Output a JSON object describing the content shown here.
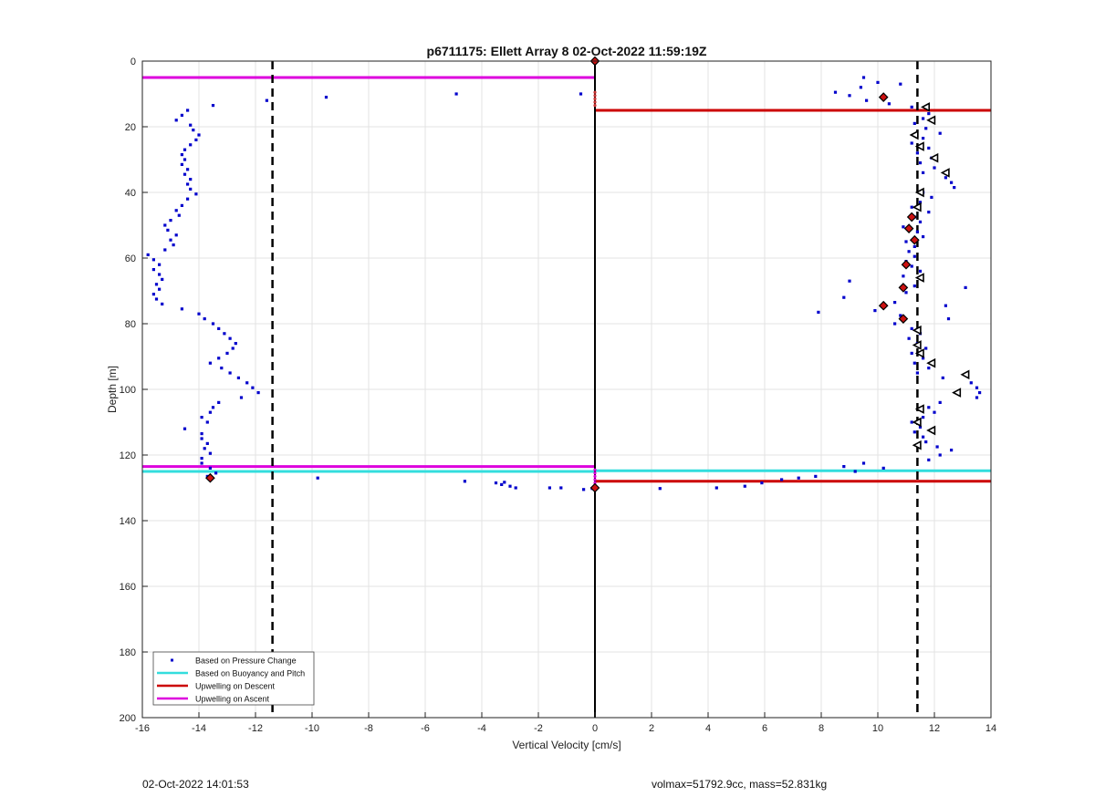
{
  "chart_data": {
    "type": "scatter",
    "title": "p6711175: Ellett Array 8 02-Oct-2022 11:59:19Z",
    "xlabel": "Vertical Velocity [cm/s]",
    "ylabel": "Depth [m]",
    "xlim": [
      -16,
      14
    ],
    "ylim": [
      0,
      200
    ],
    "y_reversed": true,
    "grid": true,
    "xticks": [
      -16,
      -14,
      -12,
      -10,
      -8,
      -6,
      -4,
      -2,
      0,
      2,
      4,
      6,
      8,
      10,
      12,
      14
    ],
    "yticks": [
      0,
      20,
      40,
      60,
      80,
      100,
      120,
      140,
      160,
      180,
      200
    ],
    "legend": {
      "location": "bottom-left",
      "entries": [
        {
          "label": "Based on Pressure Change",
          "color": "#0000cc",
          "style": "dot"
        },
        {
          "label": "Based on Buoyancy and Pitch",
          "color": "#33dddd",
          "style": "line"
        },
        {
          "label": "Upwelling on Descent",
          "color": "#cc0000",
          "style": "line"
        },
        {
          "label": "Upwelling on Ascent",
          "color": "#dd00dd",
          "style": "line"
        }
      ]
    },
    "reference_lines": {
      "zero_line_x": 0,
      "dashed_vlines_x": [
        -11.4,
        11.4
      ]
    },
    "horizontal_segments": [
      {
        "series": "Upwelling on Ascent",
        "color": "#dd00dd",
        "y": 5,
        "x": [
          -16,
          0
        ]
      },
      {
        "series": "Upwelling on Ascent",
        "color": "#dd00dd",
        "y": 123.5,
        "x": [
          -16,
          0
        ]
      },
      {
        "series": "Based on Buoyancy and Pitch",
        "color": "#33dddd",
        "y": 125,
        "x": [
          -16,
          0
        ]
      },
      {
        "series": "Based on Buoyancy and Pitch",
        "color": "#33dddd",
        "y": 124.8,
        "x": [
          0,
          14
        ]
      },
      {
        "series": "Upwelling on Descent",
        "color": "#cc0000",
        "y": 15,
        "x": [
          0,
          14
        ]
      },
      {
        "series": "Upwelling on Descent",
        "color": "#cc0000",
        "y": 128,
        "x": [
          0,
          14
        ]
      }
    ],
    "series": [
      {
        "name": "Based on Pressure Change",
        "marker": "dot",
        "color": "#0000cc",
        "points": [
          [
            -14.4,
            15
          ],
          [
            -14.6,
            16.5
          ],
          [
            -14.8,
            18
          ],
          [
            -14.3,
            19.5
          ],
          [
            -14.2,
            21
          ],
          [
            -14.0,
            22.5
          ],
          [
            -14.1,
            24
          ],
          [
            -14.3,
            25.5
          ],
          [
            -14.5,
            27
          ],
          [
            -14.6,
            28.5
          ],
          [
            -14.5,
            30
          ],
          [
            -14.6,
            31.5
          ],
          [
            -14.4,
            33
          ],
          [
            -14.5,
            34.5
          ],
          [
            -14.3,
            36
          ],
          [
            -14.4,
            37.5
          ],
          [
            -14.3,
            39
          ],
          [
            -14.1,
            40.5
          ],
          [
            -14.4,
            42
          ],
          [
            -14.6,
            44
          ],
          [
            -14.8,
            45.5
          ],
          [
            -14.7,
            47
          ],
          [
            -15.0,
            48.5
          ],
          [
            -15.2,
            50
          ],
          [
            -15.1,
            51.5
          ],
          [
            -14.8,
            53
          ],
          [
            -15.0,
            54.5
          ],
          [
            -14.9,
            56
          ],
          [
            -15.2,
            57.5
          ],
          [
            -15.8,
            59
          ],
          [
            -15.6,
            60.5
          ],
          [
            -15.4,
            62
          ],
          [
            -15.6,
            63.5
          ],
          [
            -15.4,
            65
          ],
          [
            -15.3,
            66.5
          ],
          [
            -15.5,
            68
          ],
          [
            -15.4,
            69.5
          ],
          [
            -15.6,
            71
          ],
          [
            -15.5,
            72.5
          ],
          [
            -15.3,
            74
          ],
          [
            -14.6,
            75.5
          ],
          [
            -14.0,
            77
          ],
          [
            -13.8,
            78.5
          ],
          [
            -13.5,
            80
          ],
          [
            -13.3,
            81.5
          ],
          [
            -13.1,
            83
          ],
          [
            -12.9,
            84.5
          ],
          [
            -12.7,
            86
          ],
          [
            -12.8,
            87.5
          ],
          [
            -13.0,
            89
          ],
          [
            -13.3,
            90.5
          ],
          [
            -13.6,
            92
          ],
          [
            -13.2,
            93.5
          ],
          [
            -12.9,
            95
          ],
          [
            -12.6,
            96.5
          ],
          [
            -12.3,
            98
          ],
          [
            -12.1,
            99.5
          ],
          [
            -11.9,
            101
          ],
          [
            -12.5,
            102.5
          ],
          [
            -13.3,
            104
          ],
          [
            -13.5,
            105.5
          ],
          [
            -13.6,
            107
          ],
          [
            -13.9,
            108.5
          ],
          [
            -13.7,
            110
          ],
          [
            -14.5,
            112
          ],
          [
            -13.9,
            113.5
          ],
          [
            -13.9,
            115
          ],
          [
            -13.7,
            116.5
          ],
          [
            -13.8,
            118
          ],
          [
            -13.6,
            119.5
          ],
          [
            -13.9,
            121
          ],
          [
            -13.9,
            122.5
          ],
          [
            -13.6,
            124
          ],
          [
            -13.4,
            125.5
          ],
          [
            -13.7,
            126.5
          ],
          [
            -13.5,
            13.5
          ],
          [
            -11.6,
            12
          ],
          [
            -9.5,
            11
          ],
          [
            -4.9,
            10
          ],
          [
            -0.5,
            10
          ],
          [
            -9.8,
            127
          ],
          [
            -4.6,
            128
          ],
          [
            -3.5,
            128.5
          ],
          [
            -3.3,
            129
          ],
          [
            -3.0,
            129.5
          ],
          [
            -3.2,
            128.3
          ],
          [
            -2.8,
            130
          ],
          [
            -1.6,
            130
          ],
          [
            -1.2,
            130
          ],
          [
            -0.4,
            130.5
          ],
          [
            -0.1,
            130.2
          ],
          [
            9.5,
            5
          ],
          [
            10.0,
            6.5
          ],
          [
            9.4,
            8
          ],
          [
            10.8,
            7
          ],
          [
            8.5,
            9.5
          ],
          [
            9.0,
            10.5
          ],
          [
            9.6,
            12
          ],
          [
            10.4,
            13
          ],
          [
            11.2,
            14
          ],
          [
            11.8,
            16
          ],
          [
            11.6,
            17.5
          ],
          [
            11.3,
            19
          ],
          [
            11.7,
            20.5
          ],
          [
            12.2,
            22
          ],
          [
            11.6,
            23.5
          ],
          [
            11.2,
            25
          ],
          [
            11.8,
            26.5
          ],
          [
            11.4,
            28
          ],
          [
            11.9,
            29.5
          ],
          [
            11.5,
            31
          ],
          [
            12.0,
            32.5
          ],
          [
            11.6,
            34
          ],
          [
            12.4,
            35.5
          ],
          [
            12.6,
            37
          ],
          [
            12.7,
            38.5
          ],
          [
            11.6,
            40
          ],
          [
            11.9,
            41.5
          ],
          [
            11.5,
            43
          ],
          [
            11.2,
            44.5
          ],
          [
            11.8,
            46
          ],
          [
            11.3,
            47.5
          ],
          [
            11.5,
            49
          ],
          [
            10.9,
            50.5
          ],
          [
            11.4,
            52
          ],
          [
            11.6,
            53.5
          ],
          [
            11.0,
            55
          ],
          [
            11.3,
            56.5
          ],
          [
            11.1,
            58
          ],
          [
            11.3,
            59.5
          ],
          [
            11.0,
            61
          ],
          [
            11.2,
            62.5
          ],
          [
            11.5,
            64
          ],
          [
            10.9,
            65.5
          ],
          [
            9.0,
            67
          ],
          [
            11.3,
            68.5
          ],
          [
            13.1,
            69
          ],
          [
            11.0,
            70.5
          ],
          [
            8.8,
            72
          ],
          [
            10.6,
            73.5
          ],
          [
            12.4,
            74.5
          ],
          [
            9.9,
            76
          ],
          [
            7.9,
            76.5
          ],
          [
            10.8,
            77.5
          ],
          [
            12.5,
            78.5
          ],
          [
            10.6,
            80
          ],
          [
            11.2,
            81.5
          ],
          [
            11.5,
            83
          ],
          [
            11.1,
            84.5
          ],
          [
            11.4,
            86
          ],
          [
            11.7,
            87.5
          ],
          [
            11.2,
            89
          ],
          [
            11.6,
            90.5
          ],
          [
            11.3,
            92
          ],
          [
            11.8,
            93.5
          ],
          [
            11.4,
            95
          ],
          [
            12.3,
            96.5
          ],
          [
            13.3,
            98
          ],
          [
            13.5,
            99.5
          ],
          [
            13.6,
            101
          ],
          [
            13.5,
            102.5
          ],
          [
            12.2,
            104
          ],
          [
            11.8,
            105.5
          ],
          [
            12.0,
            107
          ],
          [
            11.6,
            108.5
          ],
          [
            11.2,
            110
          ],
          [
            11.5,
            111.5
          ],
          [
            11.3,
            113
          ],
          [
            11.6,
            114.5
          ],
          [
            11.7,
            116
          ],
          [
            12.1,
            117.5
          ],
          [
            12.6,
            118.5
          ],
          [
            12.2,
            120
          ],
          [
            11.8,
            121.5
          ],
          [
            8.8,
            123.5
          ],
          [
            9.5,
            122.5
          ],
          [
            9.2,
            125
          ],
          [
            10.2,
            124
          ],
          [
            7.8,
            126.5
          ],
          [
            7.2,
            127
          ],
          [
            6.6,
            127.5
          ],
          [
            5.9,
            128.5
          ],
          [
            5.3,
            129.5
          ],
          [
            4.3,
            130
          ],
          [
            2.3,
            130.2
          ]
        ]
      },
      {
        "name": "",
        "marker": "red-diamond",
        "color": "#cc1111",
        "points": [
          [
            0,
            0
          ],
          [
            0,
            130
          ],
          [
            10.2,
            11
          ],
          [
            11.2,
            47.5
          ],
          [
            11.1,
            51
          ],
          [
            11.3,
            54.5
          ],
          [
            11.0,
            62
          ],
          [
            10.9,
            69
          ],
          [
            10.2,
            74.5
          ],
          [
            10.9,
            78.5
          ],
          [
            -13.6,
            127
          ]
        ]
      },
      {
        "name": "",
        "marker": "triangle",
        "color": "#000000",
        "points": [
          [
            11.7,
            14
          ],
          [
            11.9,
            18
          ],
          [
            11.3,
            22.5
          ],
          [
            11.5,
            26
          ],
          [
            12.0,
            29.5
          ],
          [
            12.4,
            34
          ],
          [
            11.5,
            40
          ],
          [
            11.4,
            44.5
          ],
          [
            11.5,
            66
          ],
          [
            11.4,
            82
          ],
          [
            11.4,
            86.5
          ],
          [
            11.5,
            89
          ],
          [
            11.9,
            92
          ],
          [
            13.1,
            95.5
          ],
          [
            12.8,
            101
          ],
          [
            11.5,
            106
          ],
          [
            11.4,
            110
          ],
          [
            11.9,
            112.5
          ],
          [
            11.4,
            117
          ]
        ]
      }
    ]
  },
  "footer": {
    "left_timestamp": "02-Oct-2022 14:01:53",
    "right_info": "volmax=51792.9cc, mass=52.831kg"
  }
}
